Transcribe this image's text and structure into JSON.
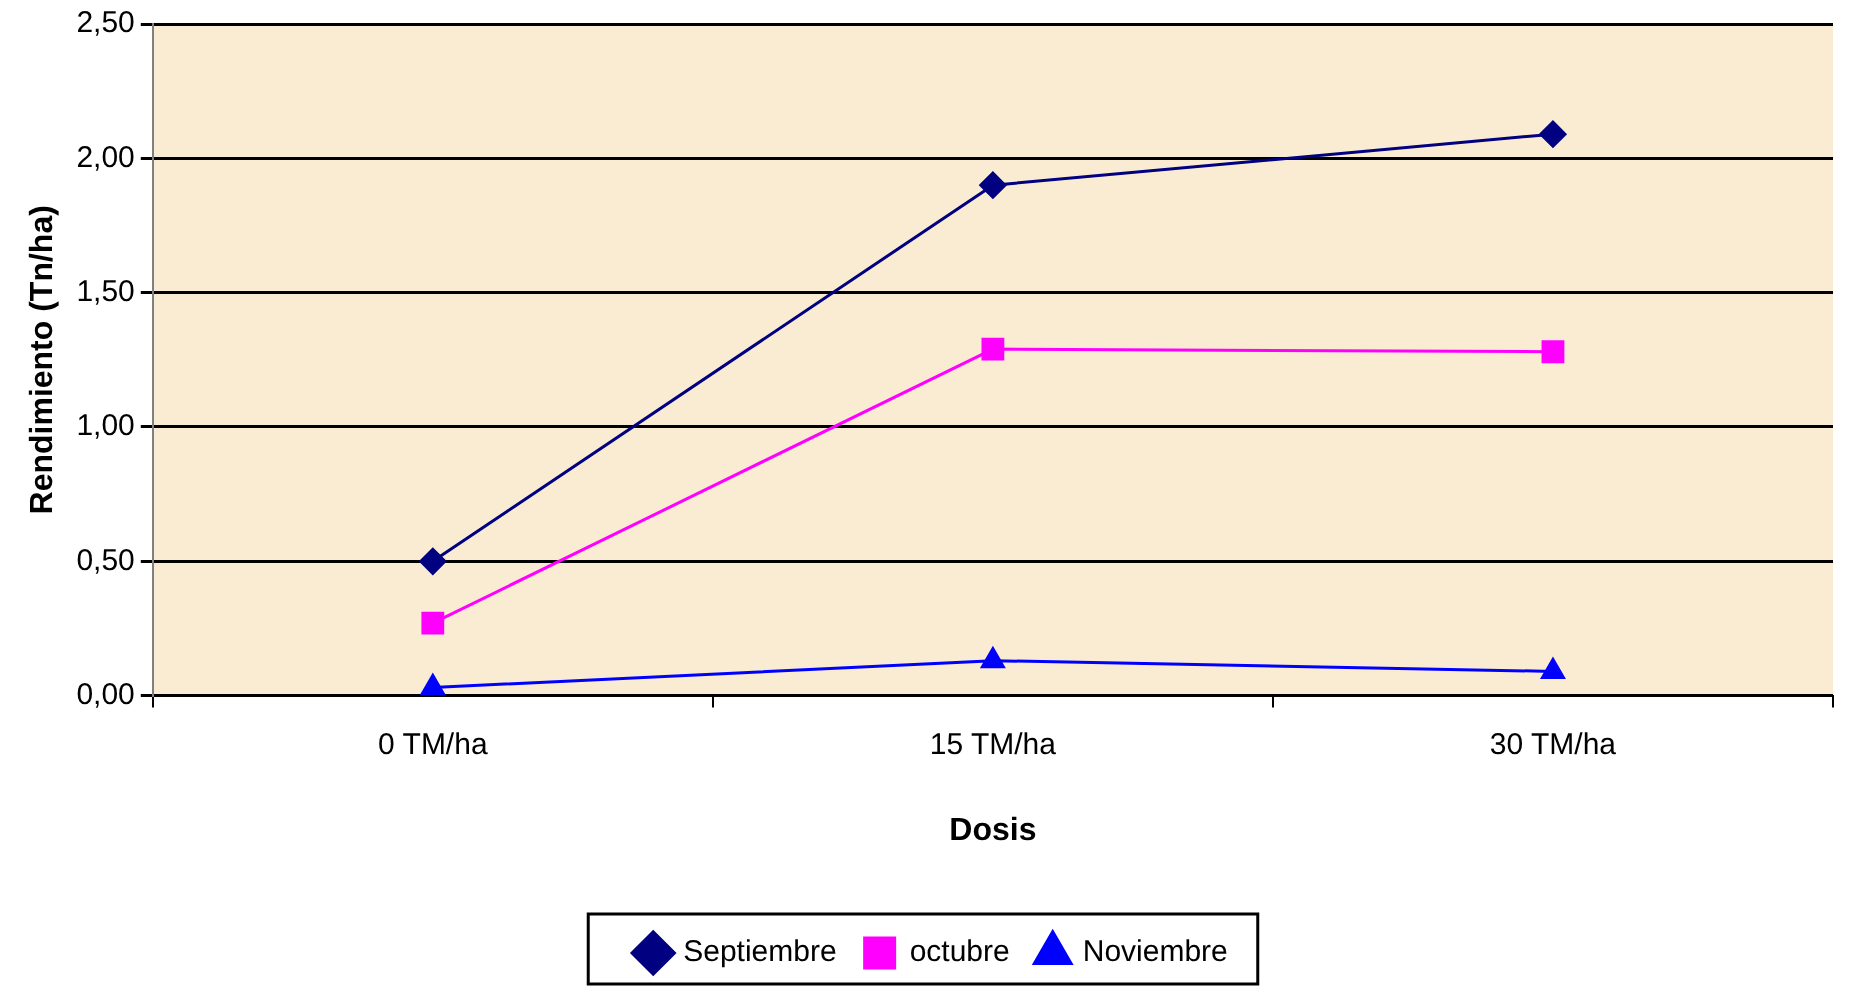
{
  "chart_data": {
    "type": "line",
    "xlabel": "Dosis",
    "ylabel": "Rendimiento (Tn/ha)",
    "categories": [
      "0 TM/ha",
      "15 TM/ha",
      "30 TM/ha"
    ],
    "series": [
      {
        "name": "Septiembre",
        "color": "#000080",
        "marker": "diamond",
        "values": [
          0.5,
          1.9,
          2.09
        ]
      },
      {
        "name": "octubre",
        "color": "#ff00ff",
        "marker": "square",
        "values": [
          0.27,
          1.29,
          1.28
        ]
      },
      {
        "name": "Noviembre",
        "color": "#0000ff",
        "marker": "triangle",
        "values": [
          0.03,
          0.13,
          0.09
        ]
      }
    ],
    "ylim": [
      0,
      2.5
    ],
    "yticks": [
      {
        "value": 0,
        "label": "0,00"
      },
      {
        "value": 0.5,
        "label": "0,50"
      },
      {
        "value": 1,
        "label": "1,00"
      },
      {
        "value": 1.5,
        "label": "1,50"
      },
      {
        "value": 2,
        "label": "2,00"
      },
      {
        "value": 2.5,
        "label": "2,50"
      }
    ],
    "grid": "y",
    "legend": "bottom",
    "line_style": "solid"
  }
}
